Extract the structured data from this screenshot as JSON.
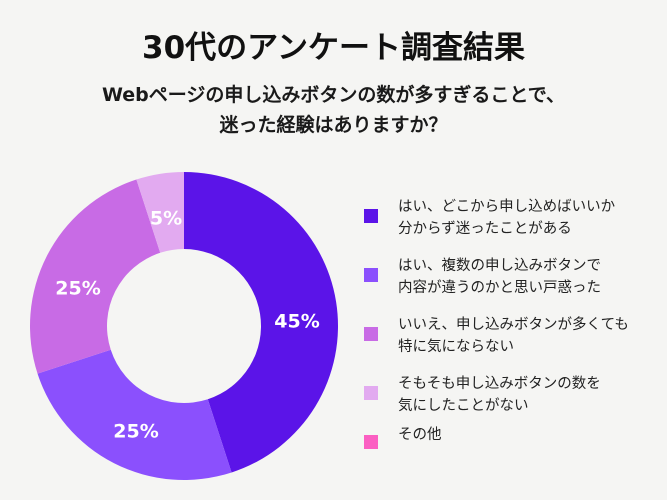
{
  "title": "30代のアンケート調査結果",
  "subtitle": {
    "line1": "Webページの申し込みボタンの数が多すぎることで、",
    "line2": "迷った経験はありますか？"
  },
  "legend": [
    {
      "line1": "はい、どこから申し込めばいいか",
      "line2": "分からず迷ったことがある",
      "color": "#5b14e8"
    },
    {
      "line1": "はい、複数の申し込みボタンで",
      "line2": "内容が違うのかと思い戸惑った",
      "color": "#8b50fd"
    },
    {
      "line1": "いいえ、申し込みボタンが多くても",
      "line2": "特に気にならない",
      "color": "#c86be5"
    },
    {
      "line1": "そもそも申し込みボタンの数を",
      "line2": "気にしたことがない",
      "color": "#e2aaf0"
    },
    {
      "line1": "その他",
      "line2": "",
      "color": "#fb5fc2"
    }
  ],
  "labels": [
    "45%",
    "25%",
    "25%",
    "5%"
  ],
  "chart_data": {
    "type": "pie",
    "subtype": "donut",
    "title": "30代のアンケート調査結果",
    "subtitle": "Webページの申し込みボタンの数が多すぎることで、迷った経験はありますか？",
    "categories": [
      "はい、どこから申し込めばいいか分からず迷ったことがある",
      "はい、複数の申し込みボタンで内容が違うのかと思い戸惑った",
      "いいえ、申し込みボタンが多くても特に気にならない",
      "そもそも申し込みボタンの数を気にしたことがない",
      "その他"
    ],
    "values": [
      45,
      25,
      25,
      5,
      0
    ],
    "unit": "%",
    "colors": [
      "#5b14e8",
      "#8b50fd",
      "#c86be5",
      "#e2aaf0",
      "#fb5fc2"
    ],
    "start_angle": "12 o'clock",
    "direction": "clockwise",
    "legend_position": "right"
  }
}
